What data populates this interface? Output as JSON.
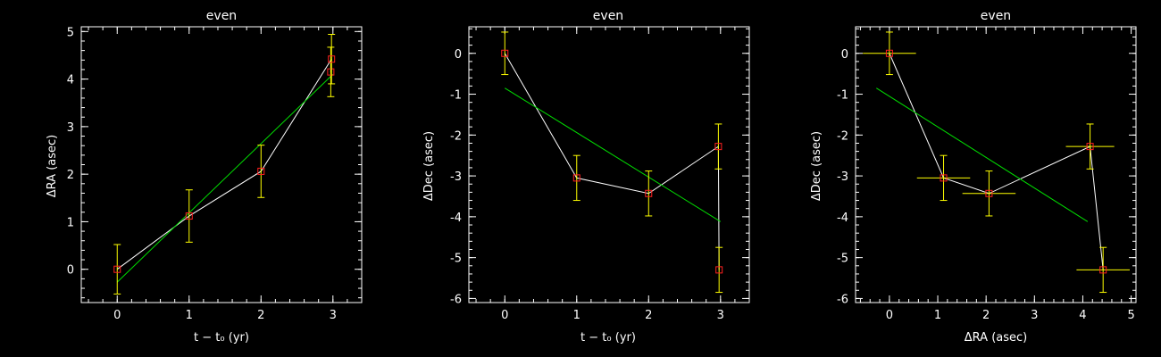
{
  "chart_data": [
    {
      "type": "scatter",
      "title": "even",
      "xlabel": "t − t₀ (yr)",
      "ylabel": "ΔRA (asec)",
      "xlim": [
        -0.5,
        3.4
      ],
      "ylim": [
        -0.7,
        5.1
      ],
      "xticks": [
        "0",
        "1",
        "2",
        "3"
      ],
      "yticks": [
        "0",
        "1",
        "2",
        "3",
        "4",
        "5"
      ],
      "points": [
        {
          "x": 0,
          "y": 0.0,
          "yerr": 0.52
        },
        {
          "x": 1,
          "y": 1.12,
          "yerr": 0.55
        },
        {
          "x": 2,
          "y": 2.06,
          "yerr": 0.55
        },
        {
          "x": 2.97,
          "y": 4.15,
          "yerr": 0.52
        },
        {
          "x": 2.98,
          "y": 4.42,
          "yerr": 0.52
        }
      ],
      "connect_order": [
        0,
        1,
        2,
        4,
        3
      ],
      "fit_line": [
        [
          0,
          -0.27
        ],
        [
          3,
          4.1
        ]
      ],
      "colors": {
        "errorbar": "#ffff00",
        "marker": "#ff2020",
        "line": "#ffffff",
        "fit": "#00dd00"
      }
    },
    {
      "type": "scatter",
      "title": "even",
      "xlabel": "t − t₀ (yr)",
      "ylabel": "ΔDec (asec)",
      "xlim": [
        -0.5,
        3.4
      ],
      "ylim": [
        -6.1,
        0.65
      ],
      "xticks": [
        "0",
        "1",
        "2",
        "3"
      ],
      "yticks": [
        "-6",
        "-5",
        "-4",
        "-3",
        "-2",
        "-1",
        "0"
      ],
      "points": [
        {
          "x": 0,
          "y": 0.0,
          "yerr": 0.52
        },
        {
          "x": 1,
          "y": -3.05,
          "yerr": 0.55
        },
        {
          "x": 2,
          "y": -3.43,
          "yerr": 0.55
        },
        {
          "x": 2.97,
          "y": -2.28,
          "yerr": 0.55
        },
        {
          "x": 2.98,
          "y": -5.3,
          "yerr": 0.55
        }
      ],
      "connect_order": [
        0,
        1,
        2,
        3,
        4
      ],
      "fit_line": [
        [
          0,
          -0.85
        ],
        [
          3,
          -4.12
        ]
      ],
      "colors": {
        "errorbar": "#ffff00",
        "marker": "#ff2020",
        "line": "#ffffff",
        "fit": "#00dd00"
      }
    },
    {
      "type": "scatter",
      "title": "even",
      "xlabel": "ΔRA (asec)",
      "ylabel": "ΔDec (asec)",
      "xlim": [
        -0.7,
        5.1
      ],
      "ylim": [
        -6.1,
        0.65
      ],
      "xticks": [
        "0",
        "1",
        "2",
        "3",
        "4",
        "5"
      ],
      "yticks": [
        "-6",
        "-5",
        "-4",
        "-3",
        "-2",
        "-1",
        "0"
      ],
      "points": [
        {
          "x": 0.0,
          "y": 0.0,
          "xerr": 0.55,
          "yerr": 0.52
        },
        {
          "x": 1.12,
          "y": -3.05,
          "xerr": 0.55,
          "yerr": 0.55
        },
        {
          "x": 2.06,
          "y": -3.43,
          "xerr": 0.55,
          "yerr": 0.55
        },
        {
          "x": 4.15,
          "y": -2.28,
          "xerr": 0.5,
          "yerr": 0.55
        },
        {
          "x": 4.42,
          "y": -5.3,
          "xerr": 0.55,
          "yerr": 0.55
        }
      ],
      "connect_order": [
        0,
        1,
        2,
        3,
        4
      ],
      "fit_line": [
        [
          -0.27,
          -0.85
        ],
        [
          4.1,
          -4.12
        ]
      ],
      "colors": {
        "errorbar": "#ffff00",
        "marker": "#ff2020",
        "line": "#ffffff",
        "fit": "#00dd00"
      }
    }
  ]
}
